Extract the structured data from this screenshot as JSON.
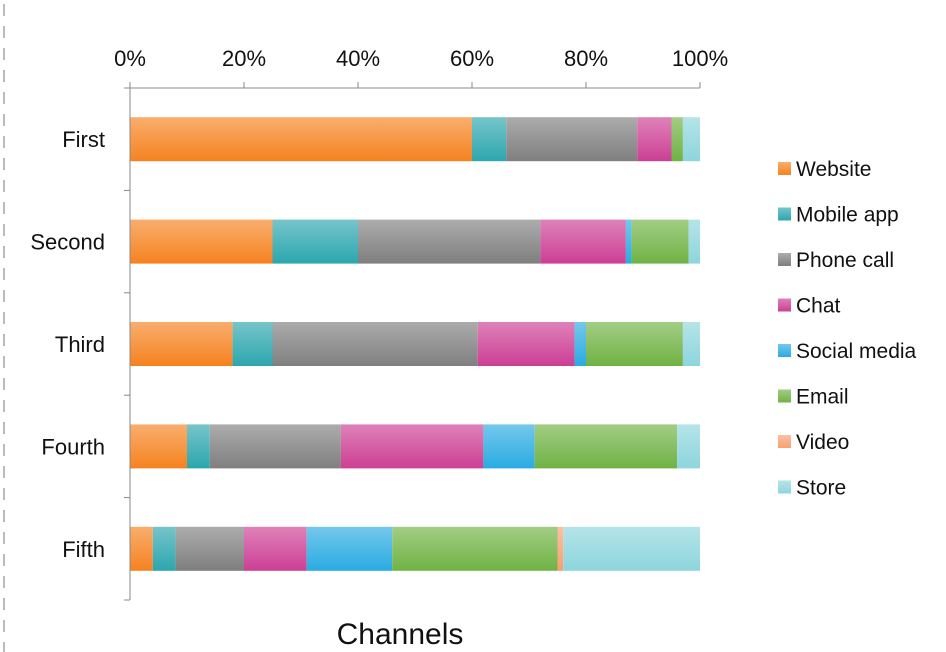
{
  "chart_data": {
    "type": "bar",
    "orientation": "horizontal",
    "stacked": "percent",
    "categories": [
      "First",
      "Second",
      "Third",
      "Fourth",
      "Fifth"
    ],
    "x_ticks": [
      "0%",
      "20%",
      "40%",
      "60%",
      "80%",
      "100%"
    ],
    "xlim": [
      0,
      100
    ],
    "xlabel": "Channels",
    "ylabel": "",
    "grid": false,
    "legend_position": "right",
    "series": [
      {
        "name": "Website",
        "color": "#F58220",
        "values": [
          60,
          25,
          18,
          10,
          4
        ]
      },
      {
        "name": "Mobile app",
        "color": "#2CA6AE",
        "values": [
          6,
          15,
          7,
          4,
          4
        ]
      },
      {
        "name": "Phone call",
        "color": "#7F7F7F",
        "values": [
          23,
          32,
          36,
          23,
          12
        ]
      },
      {
        "name": "Chat",
        "color": "#CC3F94",
        "values": [
          6,
          15,
          17,
          25,
          11
        ]
      },
      {
        "name": "Social media",
        "color": "#29ABE2",
        "values": [
          0,
          1,
          2,
          9,
          15
        ]
      },
      {
        "name": "Email",
        "color": "#70B244",
        "values": [
          2,
          10,
          17,
          25,
          29
        ]
      },
      {
        "name": "Video",
        "color": "#F7A070",
        "values": [
          0,
          0,
          0,
          0,
          1
        ]
      },
      {
        "name": "Store",
        "color": "#8DD5DD",
        "values": [
          3,
          2,
          3,
          4,
          24
        ]
      }
    ]
  }
}
